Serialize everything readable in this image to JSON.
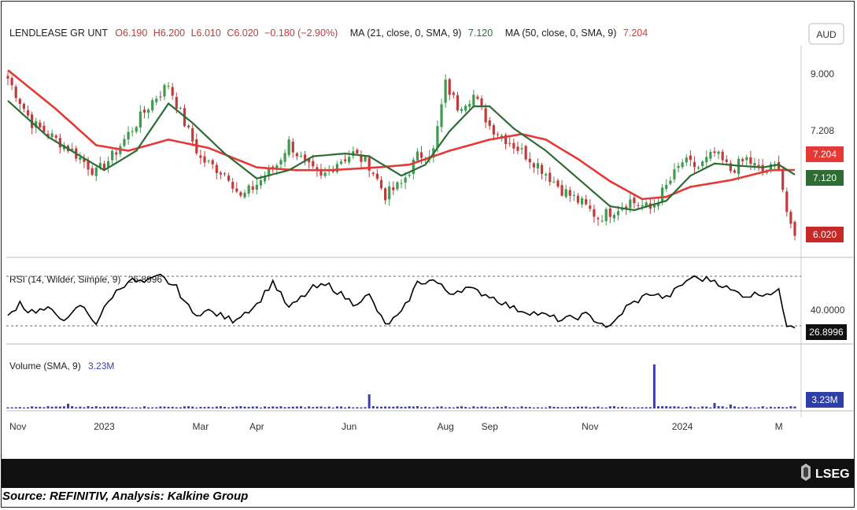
{
  "header": {
    "symbol": "LENDLEASE GR UNT",
    "ohlc": {
      "o": "O6.190",
      "h": "H6.200",
      "l": "L6.010",
      "c": "C6.020",
      "chg": "−0.180 (−2.90%)"
    },
    "ma21_label": "MA (21, close, 0, SMA, 9)",
    "ma21_value": "7.120",
    "ma50_label": "MA (50, close, 0, SMA, 9)",
    "ma50_value": "7.204",
    "currency": "AUD"
  },
  "colors": {
    "up": "#3d9a4f",
    "down": "#c23b3b",
    "ma21": "#2e6b35",
    "ma50": "#e53935",
    "rsi": "#000000",
    "volume": "#3f3fa3",
    "grid": "#cfcfcf"
  },
  "chart_data": [
    {
      "type": "candlestick",
      "x_labels": [
        "Nov",
        "2023",
        "Mar",
        "Apr",
        "Jun",
        "Aug",
        "Sep",
        "Nov",
        "2024",
        "M"
      ],
      "y_ticks": [
        "9.000",
        "7.208"
      ],
      "last_values": {
        "ma50": "7.204",
        "ma21": "7.120",
        "close": "6.020"
      },
      "close_anchors": [
        [
          0,
          8.85
        ],
        [
          6,
          8.05
        ],
        [
          16,
          7.55
        ],
        [
          22,
          7.15
        ],
        [
          26,
          7.45
        ],
        [
          36,
          8.45
        ],
        [
          40,
          8.75
        ],
        [
          44,
          8.05
        ],
        [
          48,
          7.4
        ],
        [
          55,
          7.1
        ],
        [
          58,
          6.7
        ],
        [
          62,
          6.95
        ],
        [
          67,
          7.3
        ],
        [
          70,
          7.7
        ],
        [
          74,
          7.3
        ],
        [
          78,
          7.05
        ],
        [
          82,
          7.35
        ],
        [
          86,
          7.5
        ],
        [
          90,
          7.3
        ],
        [
          94,
          6.75
        ],
        [
          98,
          6.95
        ],
        [
          102,
          7.45
        ],
        [
          106,
          7.55
        ],
        [
          109,
          8.75
        ],
        [
          112,
          8.35
        ],
        [
          116,
          8.55
        ],
        [
          120,
          8.0
        ],
        [
          126,
          7.65
        ],
        [
          132,
          7.3
        ],
        [
          138,
          6.85
        ],
        [
          143,
          6.6
        ],
        [
          147,
          6.35
        ],
        [
          150,
          6.45
        ],
        [
          155,
          6.65
        ],
        [
          160,
          6.5
        ],
        [
          164,
          6.9
        ],
        [
          168,
          7.35
        ],
        [
          172,
          7.25
        ],
        [
          176,
          7.5
        ],
        [
          180,
          7.2
        ],
        [
          184,
          7.4
        ],
        [
          188,
          7.15
        ],
        [
          192,
          7.3
        ],
        [
          194,
          6.45
        ],
        [
          196,
          6.02
        ]
      ],
      "ma21_anchors": [
        [
          0,
          8.45
        ],
        [
          10,
          7.8
        ],
        [
          24,
          7.2
        ],
        [
          32,
          7.55
        ],
        [
          40,
          8.4
        ],
        [
          46,
          8.05
        ],
        [
          54,
          7.5
        ],
        [
          62,
          7.05
        ],
        [
          70,
          7.2
        ],
        [
          76,
          7.45
        ],
        [
          84,
          7.5
        ],
        [
          90,
          7.45
        ],
        [
          98,
          7.1
        ],
        [
          104,
          7.3
        ],
        [
          110,
          7.9
        ],
        [
          116,
          8.35
        ],
        [
          120,
          8.35
        ],
        [
          126,
          7.95
        ],
        [
          134,
          7.55
        ],
        [
          142,
          7.05
        ],
        [
          150,
          6.55
        ],
        [
          156,
          6.48
        ],
        [
          164,
          6.65
        ],
        [
          170,
          7.1
        ],
        [
          176,
          7.32
        ],
        [
          182,
          7.28
        ],
        [
          188,
          7.25
        ],
        [
          192,
          7.3
        ],
        [
          196,
          7.12
        ]
      ],
      "ma50_anchors": [
        [
          0,
          9.0
        ],
        [
          12,
          8.3
        ],
        [
          22,
          7.65
        ],
        [
          30,
          7.55
        ],
        [
          40,
          7.75
        ],
        [
          50,
          7.6
        ],
        [
          62,
          7.25
        ],
        [
          72,
          7.2
        ],
        [
          80,
          7.2
        ],
        [
          92,
          7.25
        ],
        [
          100,
          7.3
        ],
        [
          110,
          7.55
        ],
        [
          120,
          7.75
        ],
        [
          128,
          7.85
        ],
        [
          134,
          7.75
        ],
        [
          142,
          7.4
        ],
        [
          150,
          7.0
        ],
        [
          158,
          6.68
        ],
        [
          164,
          6.72
        ],
        [
          170,
          6.9
        ],
        [
          180,
          7.02
        ],
        [
          190,
          7.2
        ],
        [
          196,
          7.204
        ]
      ]
    },
    {
      "type": "line",
      "label": "RSI (14, Wilder, Simple, 9)",
      "label_value": "26.8996",
      "y_ticks": [
        "40.0000"
      ],
      "last_value": "26.8996",
      "anchors": [
        [
          0,
          35
        ],
        [
          3,
          47
        ],
        [
          5,
          40
        ],
        [
          10,
          41
        ],
        [
          15,
          33
        ],
        [
          18,
          45
        ],
        [
          22,
          31
        ],
        [
          26,
          52
        ],
        [
          30,
          64
        ],
        [
          34,
          62
        ],
        [
          38,
          67
        ],
        [
          42,
          58
        ],
        [
          46,
          38
        ],
        [
          50,
          40
        ],
        [
          56,
          33
        ],
        [
          62,
          45
        ],
        [
          66,
          63
        ],
        [
          70,
          42
        ],
        [
          76,
          58
        ],
        [
          80,
          60
        ],
        [
          86,
          46
        ],
        [
          90,
          52
        ],
        [
          94,
          29
        ],
        [
          98,
          38
        ],
        [
          102,
          62
        ],
        [
          106,
          64
        ],
        [
          110,
          54
        ],
        [
          114,
          58
        ],
        [
          120,
          52
        ],
        [
          126,
          42
        ],
        [
          132,
          38
        ],
        [
          138,
          33
        ],
        [
          144,
          37
        ],
        [
          150,
          27
        ],
        [
          154,
          43
        ],
        [
          160,
          54
        ],
        [
          164,
          50
        ],
        [
          170,
          66
        ],
        [
          176,
          64
        ],
        [
          180,
          56
        ],
        [
          184,
          52
        ],
        [
          188,
          54
        ],
        [
          192,
          55
        ],
        [
          194,
          30
        ],
        [
          196,
          27
        ]
      ]
    },
    {
      "type": "bar",
      "label": "Volume (SMA, 9)",
      "label_value": "3.23M",
      "last_value": "3.23M",
      "baseline_value": 1.0,
      "spikes": [
        [
          15,
          3.0
        ],
        [
          90,
          9.0
        ],
        [
          161,
          28.0
        ],
        [
          176,
          3.5
        ],
        [
          180,
          2.5
        ]
      ]
    }
  ],
  "footer": {
    "logo_text": "LSEG",
    "source": "Source: REFINITIV, Analysis: Kalkine Group"
  }
}
